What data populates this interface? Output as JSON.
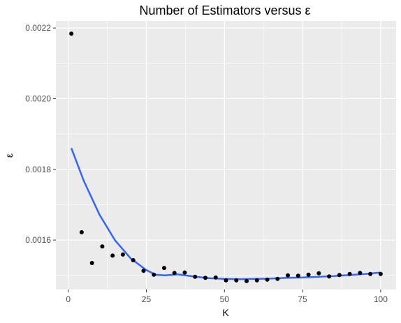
{
  "chart_data": {
    "type": "scatter",
    "title": "Number of Estimators versus ε",
    "xlabel": "K",
    "ylabel": "ε",
    "xlim": [
      -3.95,
      104.95
    ],
    "ylim": [
      0.00146,
      0.00222
    ],
    "x_ticks": [
      0,
      25,
      50,
      75,
      100
    ],
    "x_tick_labels": [
      "0",
      "25",
      "50",
      "75",
      "100"
    ],
    "y_ticks": [
      0.0016,
      0.0018,
      0.002,
      0.0022
    ],
    "y_tick_labels": [
      "0.0016",
      "0.0018",
      "0.0020",
      "0.0022"
    ],
    "grid": true,
    "background": "#ebebeb",
    "grid_color": "#ffffff",
    "point_color": "#000000",
    "smooth_color": "#3366ff",
    "series": [
      {
        "type": "scatter",
        "x": [
          1,
          4.3,
          7.6,
          10.9,
          14.2,
          17.5,
          20.8,
          24.1,
          27.4,
          30.7,
          34.0,
          37.3,
          40.6,
          43.9,
          47.2,
          50.5,
          53.8,
          57.1,
          60.4,
          63.7,
          67.0,
          70.3,
          73.6,
          76.9,
          80.2,
          83.5,
          86.8,
          90.1,
          93.4,
          96.7,
          100
        ],
        "y": [
          0.002184,
          0.001622,
          0.001535,
          0.001582,
          0.001556,
          0.001559,
          0.001543,
          0.001513,
          0.001502,
          0.001521,
          0.001507,
          0.001508,
          0.001496,
          0.001493,
          0.001494,
          0.001486,
          0.001486,
          0.001484,
          0.001486,
          0.001488,
          0.00149,
          0.0015,
          0.001499,
          0.001502,
          0.001506,
          0.001497,
          0.001501,
          0.001504,
          0.001507,
          0.001504,
          0.001504
        ]
      },
      {
        "type": "smooth",
        "x": [
          1,
          5,
          10,
          15,
          20,
          25,
          28,
          31,
          35,
          40,
          45,
          50,
          55,
          60,
          65,
          70,
          75,
          80,
          85,
          90,
          95,
          100
        ],
        "y": [
          0.00186,
          0.001767,
          0.001672,
          0.001599,
          0.001548,
          0.001515,
          0.001502,
          0.0015,
          0.001503,
          0.001497,
          0.001492,
          0.00149,
          0.001489,
          0.00149,
          0.001491,
          0.001493,
          0.001494,
          0.001496,
          0.001498,
          0.001501,
          0.001504,
          0.001508
        ]
      }
    ]
  }
}
